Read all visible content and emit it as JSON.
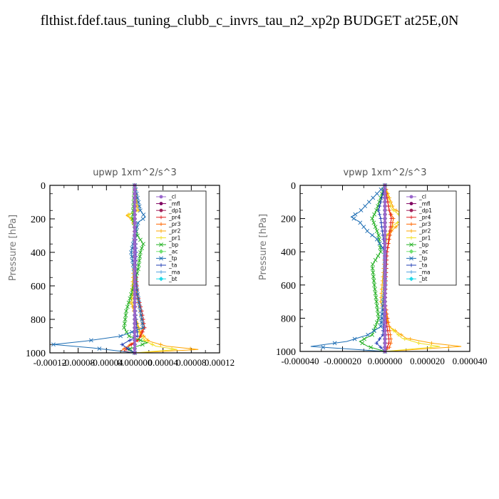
{
  "title": "flthist.fdef.taus_tuning_clubb_c_invrs_tau_n2_xp2p  BUDGET at25E,0N",
  "legend_entries": [
    {
      "label": "_cl",
      "color": "#9966cc"
    },
    {
      "label": "_mfl",
      "color": "#800060"
    },
    {
      "label": "_dp1",
      "color": "#a0205a"
    },
    {
      "label": "_pr4",
      "color": "#e02020"
    },
    {
      "label": "_pr3",
      "color": "#ff6600"
    },
    {
      "label": "_pr2",
      "color": "#ffa500"
    },
    {
      "label": "_pr1",
      "color": "#f0e020"
    },
    {
      "label": "_bp",
      "color": "#20b020"
    },
    {
      "label": "_ac",
      "color": "#70e070"
    },
    {
      "label": "_tp",
      "color": "#1e6eb4"
    },
    {
      "label": "_ta",
      "color": "#1e3cb4"
    },
    {
      "label": "_ma",
      "color": "#50a0e0"
    },
    {
      "label": "_bt",
      "color": "#20d8e8"
    }
  ],
  "chart_data": [
    {
      "type": "line",
      "title": "upwp   1xm^2/s^3",
      "ylabel": "Pressure [hPa]",
      "xlabel": "",
      "ylim": [
        1000,
        0
      ],
      "xlim": [
        -0.00012,
        0.00012
      ],
      "yticks": [
        0,
        200,
        400,
        600,
        800,
        1000
      ],
      "xticks": [
        -0.00012,
        -8e-05,
        -4e-05,
        0.0,
        4e-05,
        8e-05,
        0.00012
      ],
      "xtick_labels": [
        "-0.00012",
        "-0.00008",
        "-0.00004",
        "0.000000",
        "0.00004",
        "0.00008",
        "0.00012"
      ],
      "legend_position": "top-right",
      "series": [
        {
          "name": "_bt",
          "y": [
            0,
            200,
            400,
            600,
            800,
            900,
            950,
            1000
          ],
          "x": [
            0,
            0,
            0,
            0,
            0,
            0,
            0,
            0
          ]
        },
        {
          "name": "_ma",
          "y": [
            0,
            200,
            400,
            600,
            800,
            900,
            950,
            1000
          ],
          "x": [
            0,
            0,
            0,
            0,
            0,
            0,
            0,
            0
          ]
        },
        {
          "name": "_ac",
          "y": [
            0,
            200,
            400,
            600,
            800,
            900,
            950,
            1000
          ],
          "x": [
            0,
            0,
            0,
            0,
            0,
            0,
            0,
            0
          ]
        },
        {
          "name": "_pr2",
          "y": [
            0,
            150,
            180,
            200,
            250,
            400,
            700,
            880,
            930,
            960,
            980,
            1000
          ],
          "x": [
            0,
            5e-06,
            -1.2e-05,
            -5e-06,
            0,
            0,
            -5e-06,
            8e-06,
            2e-05,
            4.5e-05,
            9e-05,
            0
          ]
        },
        {
          "name": "_pr1",
          "y": [
            0,
            150,
            180,
            200,
            250,
            400,
            700,
            880,
            930,
            960,
            980,
            1000
          ],
          "x": [
            0,
            3e-06,
            -1e-05,
            -4e-06,
            0,
            0,
            -3e-06,
            6e-06,
            1.5e-05,
            3e-05,
            6e-05,
            0
          ]
        },
        {
          "name": "_pr3",
          "y": [
            0,
            200,
            400,
            650,
            750,
            850,
            920,
            960,
            990,
            1000
          ],
          "x": [
            0,
            0,
            0,
            3e-06,
            8e-06,
            1.2e-05,
            5e-06,
            -1e-05,
            -2e-05,
            0
          ]
        },
        {
          "name": "_pr4",
          "y": [
            0,
            200,
            400,
            650,
            750,
            850,
            920,
            960,
            990,
            1000
          ],
          "x": [
            0,
            0,
            0,
            4e-06,
            1e-05,
            1.4e-05,
            6e-06,
            -8e-06,
            -1.5e-05,
            0
          ]
        },
        {
          "name": "_bp",
          "y": [
            0,
            200,
            300,
            350,
            400,
            500,
            650,
            750,
            850,
            900,
            940,
            980,
            1000
          ],
          "x": [
            0,
            -3e-06,
            4e-06,
            1.2e-05,
            8e-06,
            5e-06,
            -5e-06,
            -1.2e-05,
            -1.5e-05,
            -8e-06,
            1.8e-05,
            -1e-05,
            0
          ]
        },
        {
          "name": "_tp",
          "y": [
            0,
            150,
            190,
            220,
            300,
            400,
            700,
            850,
            900,
            930,
            950,
            970,
            1000
          ],
          "x": [
            0,
            8e-06,
            1.5e-05,
            5e-06,
            0,
            -5e-06,
            6e-06,
            1.2e-05,
            -2e-05,
            -7e-05,
            -0.000115,
            -6e-05,
            0
          ]
        },
        {
          "name": "_ta",
          "y": [
            0,
            200,
            400,
            700,
            900,
            950,
            980,
            1000
          ],
          "x": [
            0,
            0,
            2e-06,
            0,
            4e-06,
            -1.8e-05,
            -8e-06,
            0
          ]
        },
        {
          "name": "_dp1",
          "y": [
            0,
            200,
            400,
            600,
            800,
            900,
            950,
            1000
          ],
          "x": [
            0,
            0,
            0,
            0,
            0,
            0,
            0,
            0
          ]
        },
        {
          "name": "_mfl",
          "y": [
            0,
            200,
            400,
            600,
            800,
            900,
            950,
            1000
          ],
          "x": [
            0,
            0,
            0,
            0,
            0,
            0,
            0,
            0
          ]
        },
        {
          "name": "_cl",
          "y": [
            0,
            200,
            400,
            600,
            800,
            900,
            950,
            1000
          ],
          "x": [
            0,
            0,
            0,
            0,
            0,
            0,
            0,
            0
          ]
        }
      ]
    },
    {
      "type": "line",
      "title": "vpwp   1xm^2/s^3",
      "ylabel": "Pressure [hPa]",
      "xlabel": "",
      "ylim": [
        1000,
        0
      ],
      "xlim": [
        -4e-05,
        4e-05
      ],
      "yticks": [
        0,
        200,
        400,
        600,
        800,
        1000
      ],
      "xticks": [
        -4e-05,
        -2e-05,
        0.0,
        2e-05,
        4e-05
      ],
      "xtick_labels": [
        "-0.000040",
        "-0.000020",
        "0.000000",
        "0.000020",
        "0.000040"
      ],
      "legend_position": "top-right",
      "series": [
        {
          "name": "_bt",
          "y": [
            0,
            200,
            400,
            600,
            800,
            900,
            950,
            1000
          ],
          "x": [
            0,
            0,
            0,
            0,
            0,
            0,
            0,
            0
          ]
        },
        {
          "name": "_ma",
          "y": [
            0,
            200,
            400,
            600,
            800,
            900,
            950,
            1000
          ],
          "x": [
            0,
            0,
            0,
            0,
            0,
            0,
            0,
            0
          ]
        },
        {
          "name": "_ac",
          "y": [
            0,
            200,
            400,
            600,
            800,
            900,
            950,
            1000
          ],
          "x": [
            0,
            0,
            0,
            0,
            0,
            0,
            0,
            0
          ]
        },
        {
          "name": "_pr2",
          "y": [
            0,
            140,
            170,
            200,
            240,
            300,
            400,
            700,
            850,
            920,
            950,
            970,
            1000
          ],
          "x": [
            0,
            4e-06,
            8e-06,
            1.2e-05,
            6e-06,
            1e-06,
            0,
            -2e-06,
            2e-06,
            1e-05,
            2.2e-05,
            3.6e-05,
            0
          ]
        },
        {
          "name": "_pr1",
          "y": [
            0,
            140,
            170,
            200,
            240,
            300,
            400,
            700,
            850,
            920,
            950,
            970,
            1000
          ],
          "x": [
            0,
            3e-06,
            6e-06,
            9e-06,
            4e-06,
            1e-06,
            0,
            -1e-06,
            2e-06,
            8e-06,
            1.6e-05,
            2.6e-05,
            0
          ]
        },
        {
          "name": "_pr3",
          "y": [
            0,
            150,
            200,
            400,
            700,
            850,
            940,
            980,
            1000
          ],
          "x": [
            0,
            2e-06,
            4e-06,
            1e-06,
            0,
            2e-06,
            3e-06,
            2e-06,
            0
          ]
        },
        {
          "name": "_pr4",
          "y": [
            0,
            150,
            200,
            400,
            700,
            850,
            940,
            980,
            1000
          ],
          "x": [
            0,
            2e-06,
            3e-06,
            1e-06,
            0,
            1e-06,
            2e-06,
            1e-06,
            0
          ]
        },
        {
          "name": "_bp",
          "y": [
            0,
            150,
            200,
            300,
            400,
            480,
            600,
            700,
            800,
            900,
            940,
            970,
            1000
          ],
          "x": [
            0,
            -4e-06,
            -6e-06,
            -3e-06,
            -2e-06,
            -6e-06,
            -5e-06,
            -4e-06,
            -3e-06,
            -6e-06,
            -1.2e-05,
            -8e-06,
            0
          ]
        },
        {
          "name": "_tp",
          "y": [
            0,
            160,
            190,
            220,
            280,
            320,
            400,
            600,
            850,
            900,
            940,
            970,
            1000
          ],
          "x": [
            0,
            -1.2e-05,
            -1.6e-05,
            -1.2e-05,
            -8e-06,
            -4e-06,
            0,
            0,
            -2e-06,
            -8e-06,
            -1.8e-05,
            -3.5e-05,
            0
          ]
        },
        {
          "name": "_ta",
          "y": [
            0,
            150,
            200,
            400,
            700,
            900,
            950,
            1000
          ],
          "x": [
            0,
            -3e-06,
            -2e-06,
            0,
            0,
            -1e-06,
            -4e-06,
            0
          ]
        },
        {
          "name": "_dp1",
          "y": [
            0,
            200,
            400,
            600,
            800,
            900,
            950,
            1000
          ],
          "x": [
            0,
            0,
            0,
            0,
            0,
            0,
            0,
            0
          ]
        },
        {
          "name": "_mfl",
          "y": [
            0,
            200,
            400,
            600,
            800,
            900,
            950,
            1000
          ],
          "x": [
            0,
            0,
            0,
            0,
            0,
            0,
            0,
            0
          ]
        },
        {
          "name": "_cl",
          "y": [
            0,
            200,
            400,
            600,
            800,
            900,
            950,
            1000
          ],
          "x": [
            0,
            0,
            0,
            0,
            0,
            0,
            0,
            0
          ]
        }
      ]
    }
  ]
}
